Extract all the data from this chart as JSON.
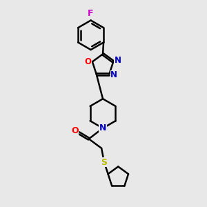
{
  "background_color": "#e8e8e8",
  "atom_colors": {
    "C": "#000000",
    "N": "#0000cc",
    "O": "#ff0000",
    "F": "#cc00cc",
    "S": "#bbbb00",
    "H": "#000000"
  },
  "bond_color": "#000000",
  "bond_width": 1.8,
  "title": "",
  "xlim": [
    -1.4,
    1.8
  ],
  "ylim": [
    -3.2,
    3.0
  ]
}
